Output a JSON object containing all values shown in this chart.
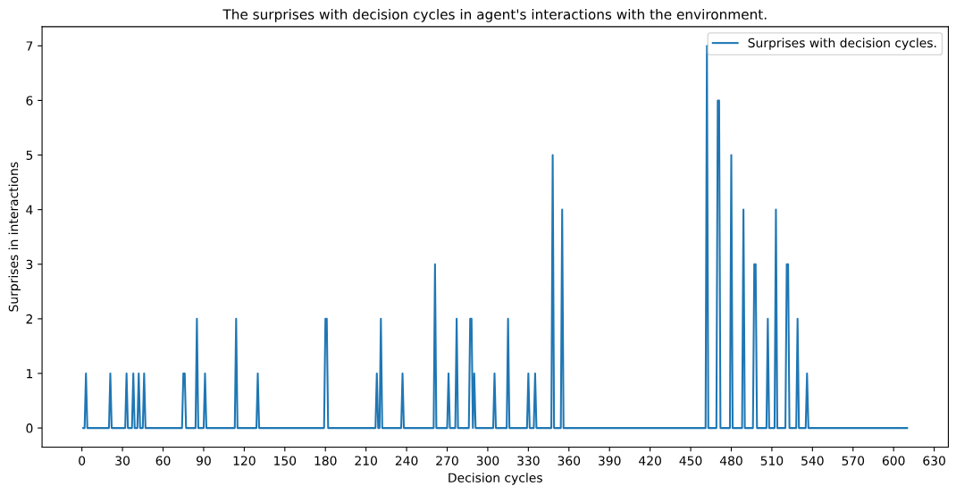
{
  "chart_data": {
    "type": "line",
    "title": "The surprises with decision cycles in agent's interactions with the environment.",
    "xlabel": "Decision cycles",
    "ylabel": "Surprises in interactions",
    "series": [
      {
        "name": "Surprises with decision cycles.",
        "color": "#1f77b4",
        "x": [
          1,
          2,
          3,
          4,
          20,
          21,
          22,
          32,
          33,
          34,
          37,
          38,
          39,
          41,
          42,
          43,
          45,
          46,
          47,
          74,
          75,
          76,
          77,
          84,
          85,
          86,
          90,
          91,
          92,
          113,
          114,
          115,
          129,
          130,
          131,
          179,
          180,
          181,
          182,
          217,
          218,
          219,
          220,
          221,
          222,
          236,
          237,
          238,
          260,
          261,
          262,
          270,
          271,
          272,
          276,
          277,
          278,
          286,
          287,
          288,
          289,
          290,
          291,
          304,
          305,
          306,
          314,
          315,
          316,
          329,
          330,
          331,
          334,
          335,
          336,
          347,
          348,
          349,
          354,
          355,
          356,
          461,
          462,
          463,
          469,
          470,
          471,
          472,
          479,
          480,
          481,
          488,
          489,
          490,
          496,
          497,
          498,
          499,
          506,
          507,
          508,
          512,
          513,
          514,
          520,
          521,
          522,
          523,
          528,
          529,
          530,
          535,
          536,
          537,
          610
        ],
        "values": [
          0,
          0,
          1,
          0,
          0,
          1,
          0,
          0,
          1,
          0,
          0,
          1,
          0,
          0,
          1,
          0,
          0,
          1,
          0,
          0,
          1,
          1,
          0,
          0,
          2,
          0,
          0,
          1,
          0,
          0,
          2,
          0,
          0,
          1,
          0,
          0,
          2,
          2,
          0,
          0,
          1,
          0,
          0,
          2,
          0,
          0,
          1,
          0,
          0,
          3,
          0,
          0,
          1,
          0,
          0,
          2,
          0,
          0,
          2,
          2,
          0,
          1,
          0,
          0,
          1,
          0,
          0,
          2,
          0,
          0,
          1,
          0,
          0,
          1,
          0,
          0,
          5,
          0,
          0,
          4,
          0,
          0,
          7,
          0,
          0,
          6,
          6,
          0,
          0,
          5,
          0,
          0,
          4,
          0,
          0,
          3,
          3,
          0,
          0,
          2,
          0,
          0,
          4,
          0,
          0,
          3,
          3,
          0,
          0,
          2,
          0,
          0,
          1,
          0,
          0
        ]
      }
    ],
    "xlim": [
      -29.45,
      640.45
    ],
    "xticks": [
      0,
      30,
      60,
      90,
      120,
      150,
      180,
      210,
      240,
      270,
      300,
      330,
      360,
      390,
      420,
      450,
      480,
      510,
      540,
      570,
      600,
      630
    ],
    "ylim": [
      -0.35,
      7.35
    ],
    "yticks": [
      0,
      1,
      2,
      3,
      4,
      5,
      6,
      7
    ],
    "grid": false,
    "legend": "top right",
    "marker": "none",
    "line_style": "solid"
  }
}
